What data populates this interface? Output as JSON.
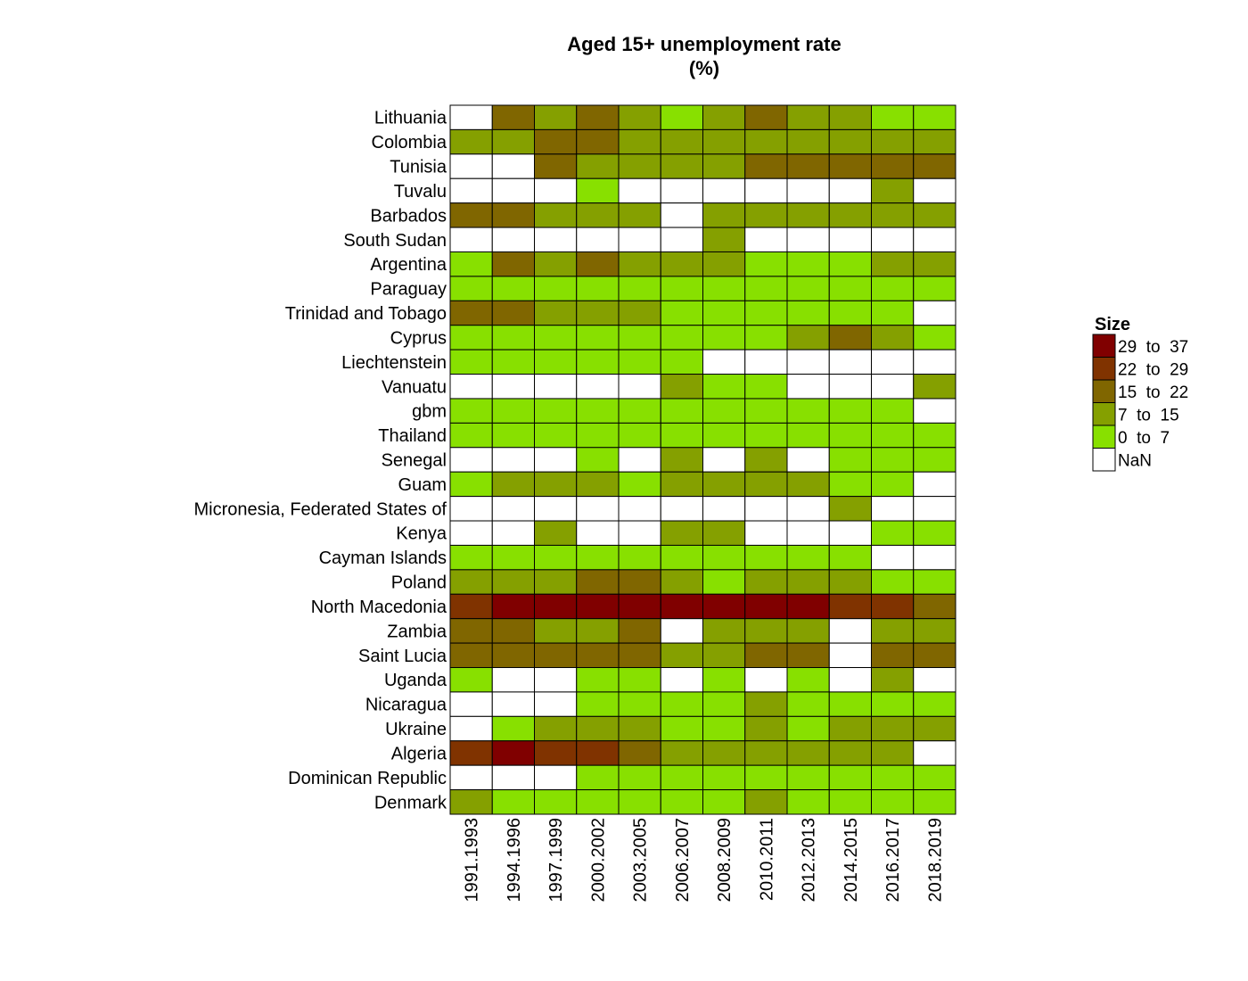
{
  "chart_data": {
    "type": "heatmap",
    "title": "Aged 15+ unemployment rate",
    "subtitle": "(%)",
    "columns": [
      "1991.1993",
      "1994.1996",
      "1997.1999",
      "2000.2002",
      "2003.2005",
      "2006.2007",
      "2008.2009",
      "2010.2011",
      "2012.2013",
      "2014.2015",
      "2016.2017",
      "2018.2019"
    ],
    "rows": [
      "Lithuania",
      "Colombia",
      "Tunisia",
      "Tuvalu",
      "Barbados",
      "South Sudan",
      "Argentina",
      "Paraguay",
      "Trinidad and Tobago",
      "Cyprus",
      "Liechtenstein",
      "Vanuatu",
      "gbm",
      "Thailand",
      "Senegal",
      "Guam",
      "Micronesia, Federated States of",
      "Kenya",
      "Cayman Islands",
      "Poland",
      "North Macedonia",
      "Zambia",
      "Saint Lucia",
      "Uganda",
      "Nicaragua",
      "Ukraine",
      "Algeria",
      "Dominican Republic",
      "Denmark"
    ],
    "values": [
      [
        "NaN",
        "15 to 22",
        "7 to 15",
        "15 to 22",
        "7 to 15",
        "0 to 7",
        "7 to 15",
        "15 to 22",
        "7 to 15",
        "7 to 15",
        "0 to 7",
        "0 to 7"
      ],
      [
        "7 to 15",
        "7 to 15",
        "15 to 22",
        "15 to 22",
        "7 to 15",
        "7 to 15",
        "7 to 15",
        "7 to 15",
        "7 to 15",
        "7 to 15",
        "7 to 15",
        "7 to 15"
      ],
      [
        "NaN",
        "NaN",
        "15 to 22",
        "7 to 15",
        "7 to 15",
        "7 to 15",
        "7 to 15",
        "15 to 22",
        "15 to 22",
        "15 to 22",
        "15 to 22",
        "15 to 22"
      ],
      [
        "NaN",
        "NaN",
        "NaN",
        "0 to 7",
        "NaN",
        "NaN",
        "NaN",
        "NaN",
        "NaN",
        "NaN",
        "7 to 15",
        "NaN"
      ],
      [
        "15 to 22",
        "15 to 22",
        "7 to 15",
        "7 to 15",
        "7 to 15",
        "NaN",
        "7 to 15",
        "7 to 15",
        "7 to 15",
        "7 to 15",
        "7 to 15",
        "7 to 15"
      ],
      [
        "NaN",
        "NaN",
        "NaN",
        "NaN",
        "NaN",
        "NaN",
        "7 to 15",
        "NaN",
        "NaN",
        "NaN",
        "NaN",
        "NaN"
      ],
      [
        "0 to 7",
        "15 to 22",
        "7 to 15",
        "15 to 22",
        "7 to 15",
        "7 to 15",
        "7 to 15",
        "0 to 7",
        "0 to 7",
        "0 to 7",
        "7 to 15",
        "7 to 15"
      ],
      [
        "0 to 7",
        "0 to 7",
        "0 to 7",
        "0 to 7",
        "0 to 7",
        "0 to 7",
        "0 to 7",
        "0 to 7",
        "0 to 7",
        "0 to 7",
        "0 to 7",
        "0 to 7"
      ],
      [
        "15 to 22",
        "15 to 22",
        "7 to 15",
        "7 to 15",
        "7 to 15",
        "0 to 7",
        "0 to 7",
        "0 to 7",
        "0 to 7",
        "0 to 7",
        "0 to 7",
        "NaN"
      ],
      [
        "0 to 7",
        "0 to 7",
        "0 to 7",
        "0 to 7",
        "0 to 7",
        "0 to 7",
        "0 to 7",
        "0 to 7",
        "7 to 15",
        "15 to 22",
        "7 to 15",
        "0 to 7"
      ],
      [
        "0 to 7",
        "0 to 7",
        "0 to 7",
        "0 to 7",
        "0 to 7",
        "0 to 7",
        "NaN",
        "NaN",
        "NaN",
        "NaN",
        "NaN",
        "NaN"
      ],
      [
        "NaN",
        "NaN",
        "NaN",
        "NaN",
        "NaN",
        "7 to 15",
        "0 to 7",
        "0 to 7",
        "NaN",
        "NaN",
        "NaN",
        "7 to 15"
      ],
      [
        "0 to 7",
        "0 to 7",
        "0 to 7",
        "0 to 7",
        "0 to 7",
        "0 to 7",
        "0 to 7",
        "0 to 7",
        "0 to 7",
        "0 to 7",
        "0 to 7",
        "NaN"
      ],
      [
        "0 to 7",
        "0 to 7",
        "0 to 7",
        "0 to 7",
        "0 to 7",
        "0 to 7",
        "0 to 7",
        "0 to 7",
        "0 to 7",
        "0 to 7",
        "0 to 7",
        "0 to 7"
      ],
      [
        "NaN",
        "NaN",
        "NaN",
        "0 to 7",
        "NaN",
        "7 to 15",
        "NaN",
        "7 to 15",
        "NaN",
        "0 to 7",
        "0 to 7",
        "0 to 7"
      ],
      [
        "0 to 7",
        "7 to 15",
        "7 to 15",
        "7 to 15",
        "0 to 7",
        "7 to 15",
        "7 to 15",
        "7 to 15",
        "7 to 15",
        "0 to 7",
        "0 to 7",
        "NaN"
      ],
      [
        "NaN",
        "NaN",
        "NaN",
        "NaN",
        "NaN",
        "NaN",
        "NaN",
        "NaN",
        "NaN",
        "7 to 15",
        "NaN",
        "NaN"
      ],
      [
        "NaN",
        "NaN",
        "7 to 15",
        "NaN",
        "NaN",
        "7 to 15",
        "7 to 15",
        "NaN",
        "NaN",
        "NaN",
        "0 to 7",
        "0 to 7"
      ],
      [
        "0 to 7",
        "0 to 7",
        "0 to 7",
        "0 to 7",
        "0 to 7",
        "0 to 7",
        "0 to 7",
        "0 to 7",
        "0 to 7",
        "0 to 7",
        "NaN",
        "NaN"
      ],
      [
        "7 to 15",
        "7 to 15",
        "7 to 15",
        "15 to 22",
        "15 to 22",
        "7 to 15",
        "0 to 7",
        "7 to 15",
        "7 to 15",
        "7 to 15",
        "0 to 7",
        "0 to 7"
      ],
      [
        "22 to 29",
        "29 to 37",
        "29 to 37",
        "29 to 37",
        "29 to 37",
        "29 to 37",
        "29 to 37",
        "29 to 37",
        "29 to 37",
        "22 to 29",
        "22 to 29",
        "15 to 22"
      ],
      [
        "15 to 22",
        "15 to 22",
        "7 to 15",
        "7 to 15",
        "15 to 22",
        "NaN",
        "7 to 15",
        "7 to 15",
        "7 to 15",
        "NaN",
        "7 to 15",
        "7 to 15"
      ],
      [
        "15 to 22",
        "15 to 22",
        "15 to 22",
        "15 to 22",
        "15 to 22",
        "7 to 15",
        "7 to 15",
        "15 to 22",
        "15 to 22",
        "NaN",
        "15 to 22",
        "15 to 22"
      ],
      [
        "0 to 7",
        "NaN",
        "NaN",
        "0 to 7",
        "0 to 7",
        "NaN",
        "0 to 7",
        "NaN",
        "0 to 7",
        "NaN",
        "7 to 15",
        "NaN"
      ],
      [
        "NaN",
        "NaN",
        "NaN",
        "0 to 7",
        "0 to 7",
        "0 to 7",
        "0 to 7",
        "7 to 15",
        "0 to 7",
        "0 to 7",
        "0 to 7",
        "0 to 7"
      ],
      [
        "NaN",
        "0 to 7",
        "7 to 15",
        "7 to 15",
        "7 to 15",
        "0 to 7",
        "0 to 7",
        "7 to 15",
        "0 to 7",
        "7 to 15",
        "7 to 15",
        "7 to 15"
      ],
      [
        "22 to 29",
        "29 to 37",
        "22 to 29",
        "22 to 29",
        "15 to 22",
        "7 to 15",
        "7 to 15",
        "7 to 15",
        "7 to 15",
        "7 to 15",
        "7 to 15",
        "NaN"
      ],
      [
        "NaN",
        "NaN",
        "NaN",
        "0 to 7",
        "0 to 7",
        "0 to 7",
        "0 to 7",
        "0 to 7",
        "0 to 7",
        "0 to 7",
        "0 to 7",
        "0 to 7"
      ],
      [
        "7 to 15",
        "0 to 7",
        "0 to 7",
        "0 to 7",
        "0 to 7",
        "0 to 7",
        "0 to 7",
        "7 to 15",
        "0 to 7",
        "0 to 7",
        "0 to 7",
        "0 to 7"
      ]
    ],
    "legend": {
      "title": "Size",
      "items": [
        {
          "label": "29  to  37",
          "key": "29 to 37",
          "color": "#800000"
        },
        {
          "label": "22  to  29",
          "key": "22 to 29",
          "color": "#803300"
        },
        {
          "label": "15  to  22",
          "key": "15 to 22",
          "color": "#806600"
        },
        {
          "label": "7  to  15",
          "key": "7 to 15",
          "color": "#85a000"
        },
        {
          "label": "0  to  7",
          "key": "0 to 7",
          "color": "#88e000"
        },
        {
          "label": "NaN",
          "key": "NaN",
          "color": "#ffffff"
        }
      ]
    }
  }
}
